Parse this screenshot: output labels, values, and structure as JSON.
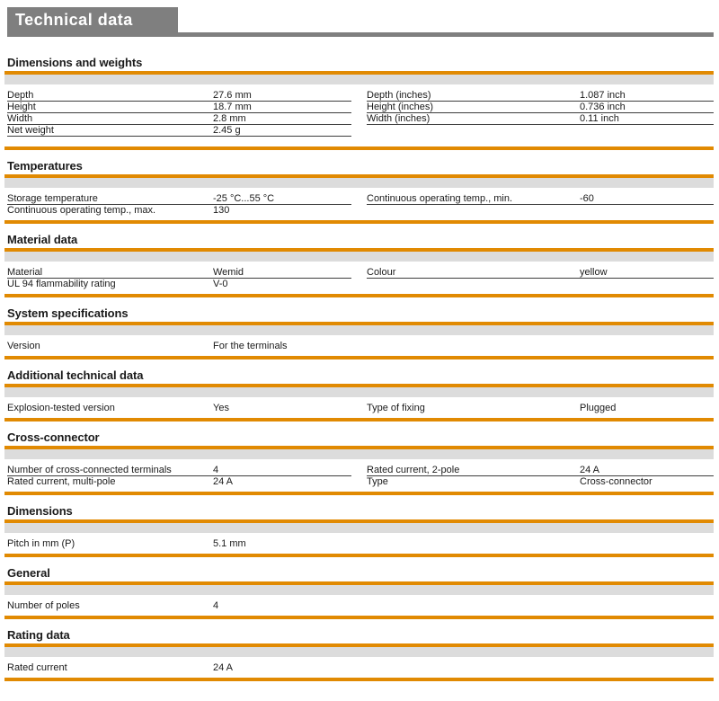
{
  "header": {
    "title": "Technical data"
  },
  "colors": {
    "accent_orange": "#e18a02",
    "header_gray": "#7f7f7f",
    "band_gray": "#dcdcdc",
    "row_line": "#3d3d3d"
  },
  "sections": [
    {
      "heading": "Dimensions and weights",
      "left_rows": [
        {
          "label": "Depth",
          "value": "27.6 mm"
        },
        {
          "label": "Height",
          "value": "18.7 mm"
        },
        {
          "label": "Width",
          "value": "2.8 mm"
        },
        {
          "label": "Net weight",
          "value": "2.45 g"
        }
      ],
      "right_rows": [
        {
          "label": "Depth (inches)",
          "value": "1.087 inch"
        },
        {
          "label": "Height (inches)",
          "value": "0.736 inch"
        },
        {
          "label": "Width (inches)",
          "value": "0.11 inch"
        }
      ],
      "left_border_last": true,
      "right_border_last": true
    },
    {
      "heading": "Temperatures",
      "left_rows": [
        {
          "label": "Storage temperature",
          "value": "-25 °C...55 °C"
        },
        {
          "label": "Continuous operating temp., max.",
          "value": "130"
        }
      ],
      "right_rows": [
        {
          "label": "Continuous operating temp., min.",
          "value": "-60"
        }
      ],
      "left_border_last": false,
      "right_border_last": true
    },
    {
      "heading": "Material data",
      "left_rows": [
        {
          "label": "Material",
          "value": "Wemid"
        },
        {
          "label": "UL 94 flammability rating",
          "value": "V-0"
        }
      ],
      "right_rows": [
        {
          "label": "Colour",
          "value": "yellow"
        }
      ],
      "left_border_last": false,
      "right_border_last": true
    },
    {
      "heading": "System specifications",
      "left_rows": [
        {
          "label": "Version",
          "value": "For the terminals"
        }
      ],
      "right_rows": [],
      "left_border_last": false,
      "right_border_last": false
    },
    {
      "heading": "Additional technical data",
      "left_rows": [
        {
          "label": "Explosion-tested version",
          "value": "Yes"
        }
      ],
      "right_rows": [
        {
          "label": "Type of fixing",
          "value": "Plugged"
        }
      ],
      "left_border_last": false,
      "right_border_last": false
    },
    {
      "heading": "Cross-connector",
      "left_rows": [
        {
          "label": "Number of cross-connected terminals",
          "value": "4"
        },
        {
          "label": "Rated current, multi-pole",
          "value": "24 A"
        }
      ],
      "right_rows": [
        {
          "label": "Rated current, 2-pole",
          "value": "24 A"
        },
        {
          "label": "Type",
          "value": "Cross-connector"
        }
      ],
      "left_border_last": false,
      "right_border_last": false
    },
    {
      "heading": "Dimensions",
      "left_rows": [
        {
          "label": "Pitch in mm (P)",
          "value": "5.1 mm"
        }
      ],
      "right_rows": [],
      "left_border_last": false,
      "right_border_last": false
    },
    {
      "heading": "General",
      "left_rows": [
        {
          "label": "Number of poles",
          "value": "4"
        }
      ],
      "right_rows": [],
      "left_border_last": false,
      "right_border_last": false
    },
    {
      "heading": "Rating data",
      "left_rows": [
        {
          "label": "Rated current",
          "value": "24 A"
        }
      ],
      "right_rows": [],
      "left_border_last": false,
      "right_border_last": false
    }
  ]
}
